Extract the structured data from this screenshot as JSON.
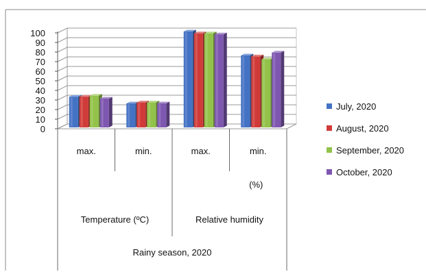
{
  "chart_data": {
    "type": "bar",
    "subtype": "3d-clustered-column",
    "title": "",
    "xlabel": "",
    "ylabel": "",
    "ylim": [
      0,
      100
    ],
    "yticks": [
      0,
      10,
      20,
      30,
      40,
      50,
      60,
      70,
      80,
      90,
      100
    ],
    "grid": true,
    "legend_position": "right",
    "categories": [
      "max.",
      "min.",
      "max.",
      "min."
    ],
    "category_groups": {
      "level2": [
        {
          "label": "Temperature (ºC)",
          "span": [
            0,
            1
          ]
        },
        {
          "label": "Relative humidity",
          "span": [
            2,
            3
          ]
        }
      ],
      "annotation": {
        "label": "(%)",
        "under_category": 3
      },
      "level3": {
        "label": "Rainy season, 2020",
        "span": [
          0,
          3
        ]
      }
    },
    "series": [
      {
        "name": "July, 2020",
        "color": "#4472C4",
        "values": [
          32,
          25,
          100,
          75
        ]
      },
      {
        "name": "August, 2020",
        "color": "#D03B39",
        "values": [
          32,
          26,
          98,
          74
        ]
      },
      {
        "name": "September, 2020",
        "color": "#92C24A",
        "values": [
          33,
          26,
          98,
          71
        ]
      },
      {
        "name": "October, 2020",
        "color": "#7E57B0",
        "values": [
          30,
          25,
          97,
          78
        ]
      }
    ]
  }
}
